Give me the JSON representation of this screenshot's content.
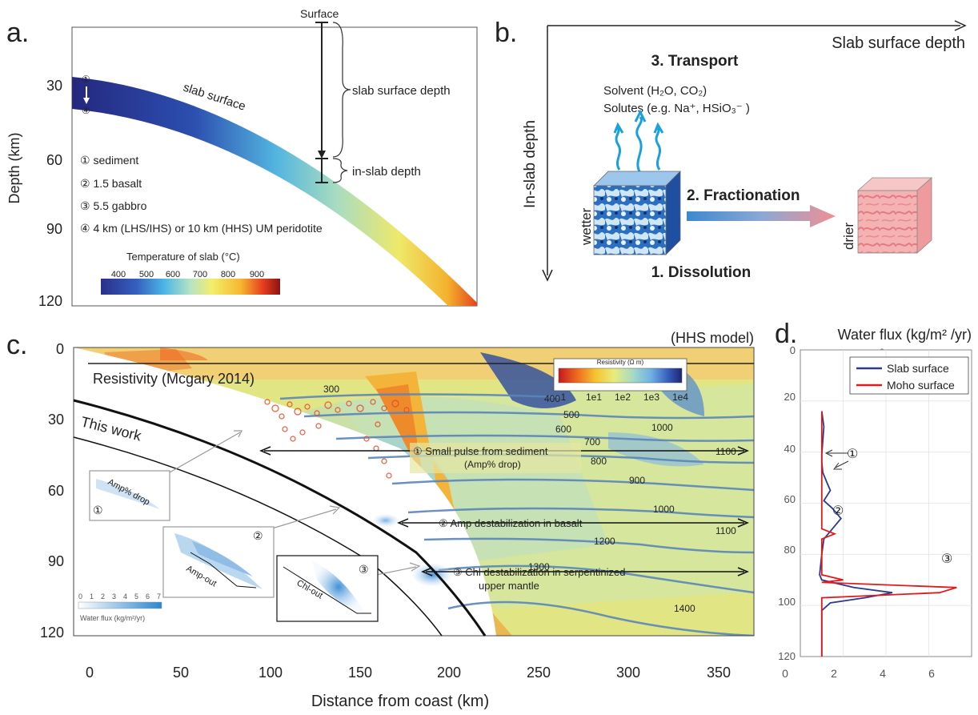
{
  "panel_a": {
    "label": "a.",
    "y_axis_label": "Depth (km)",
    "y_ticks": [
      "30",
      "60",
      "90",
      "120"
    ],
    "surface_label": "Surface",
    "slab_surface_text": "slab surface",
    "slab_surface_depth_label": "slab surface depth",
    "in_slab_depth_label": "in-slab depth",
    "marker_top": "①",
    "marker_bottom": "④",
    "legend_items": [
      "① sediment",
      "② 1.5 basalt",
      "③ 5.5 gabbro",
      "④ 4 km (LHS/IHS) or 10 km (HHS) UM peridotite"
    ],
    "colorbar_title": "Temperature of slab (°C)",
    "colorbar_ticks": [
      "400",
      "500",
      "600",
      "700",
      "800",
      "900"
    ]
  },
  "panel_b": {
    "label": "b.",
    "x_axis_label": "Slab surface depth",
    "y_axis_label": "In-slab depth",
    "transport_title": "3. Transport",
    "solvent_text": "Solvent (H₂O, CO₂)",
    "solutes_text": "Solutes (e.g. Na⁺, HSiO₃⁻ )",
    "fractionation_label": "2. Fractionation",
    "dissolution_label": "1. Dissolution",
    "wetter_label": "wetter",
    "drier_label": "drier"
  },
  "panel_c": {
    "label": "c.",
    "model_label": "(HHS model)",
    "y_ticks": [
      "0",
      "30",
      "60",
      "90",
      "120"
    ],
    "x_ticks": [
      "0",
      "50",
      "100",
      "150",
      "200",
      "250",
      "300",
      "350"
    ],
    "x_axis_label": "Distance from coast (km)",
    "resistivity_label": "Resistivity (Mcgary 2014)",
    "this_work_label": "This work",
    "resistivity_bar_title": "Resistivity (Ω m)",
    "resistivity_bar_ticks": [
      "1",
      "1e1",
      "1e2",
      "1e3",
      "1e4"
    ],
    "isotherm_labels": [
      "300",
      "400",
      "500",
      "600",
      "700",
      "800",
      "900",
      "1000",
      "1000",
      "1100",
      "1100",
      "1200",
      "1300",
      "1400"
    ],
    "annotation_1": "① Small pulse from sediment",
    "annotation_1b": "(Amp% drop)",
    "annotation_2": "② Amp destabilization in basalt",
    "annotation_3": "③ Chl destabilization in serpentinized",
    "annotation_3b": "upper mantle",
    "inset_1_label": "Amp% drop",
    "inset_1_num": "①",
    "inset_2_label": "Amp-out",
    "inset_2_num": "②",
    "inset_3_label": "Chl-out",
    "inset_3_num": "③",
    "flux_bar_ticks": [
      "0",
      "1",
      "2",
      "3",
      "4",
      "5",
      "6",
      "7"
    ],
    "flux_bar_title": "Water flux (kg/m²/yr)"
  },
  "panel_d": {
    "label": "d.",
    "title": "Water flux (kg/m² /yr)",
    "top_tick": "2",
    "y_ticks": [
      "0",
      "20",
      "40",
      "60",
      "80",
      "100",
      "120"
    ],
    "x_ticks": [
      "0",
      "2",
      "4",
      "6"
    ],
    "markers": [
      "①",
      "②",
      "③"
    ],
    "colors": {
      "slab": "#2b3a8f",
      "moho": "#e31a1c"
    },
    "chart_data": {
      "type": "line",
      "xlim": [
        0,
        8
      ],
      "ylim": [
        0,
        120
      ],
      "series": [
        {
          "name": "Slab surface",
          "x": [
            1.0,
            1.1,
            1.0,
            1.0,
            1.05,
            1.25,
            1.4,
            1.1,
            1.5,
            1.9,
            1.5,
            1.1,
            1.0,
            0.9,
            1.0,
            2.5,
            4.3,
            3.0,
            1.4,
            1.0,
            1.0,
            1.0
          ],
          "y": [
            24,
            30,
            41,
            44,
            48,
            52,
            55,
            59,
            62,
            66,
            70,
            74,
            80,
            88,
            90,
            93,
            95,
            97,
            99,
            102,
            110,
            120
          ]
        },
        {
          "name": "Moho surface",
          "x": [
            1.0,
            1.0,
            1.0,
            1.6,
            1.0,
            1.0,
            2.0,
            1.0,
            7.3,
            6.5,
            1.0,
            1.0,
            1.0
          ],
          "y": [
            24,
            40,
            70,
            72,
            74,
            88,
            90,
            91,
            93,
            95,
            97,
            110,
            120
          ]
        }
      ]
    }
  }
}
